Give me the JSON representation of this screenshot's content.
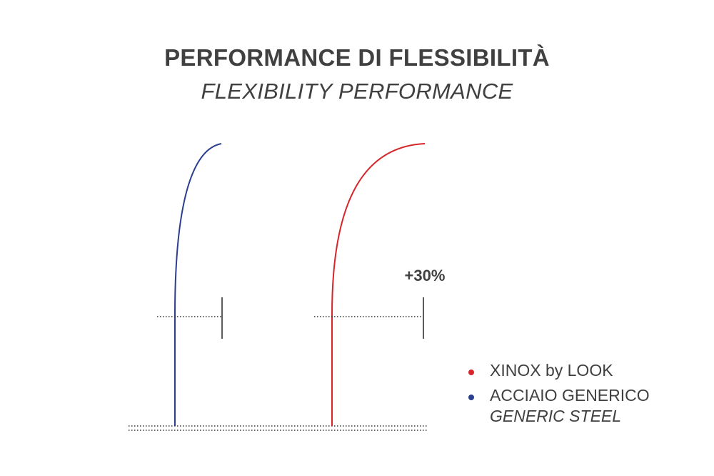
{
  "title": "PERFORMANCE DI FLESSIBILITÀ",
  "subtitle": "FLEXIBILITY PERFORMANCE",
  "annotation": "+30%",
  "colors": {
    "xinox": "#d6262b",
    "steel": "#2b3f8f",
    "text": "#404040",
    "marker": "#333333"
  },
  "legend": [
    {
      "label": "XINOX by LOOK",
      "sublabel": "",
      "color_key": "xinox"
    },
    {
      "label": "ACCIAIO GENERICO",
      "sublabel": "GENERIC STEEL",
      "color_key": "steel"
    }
  ],
  "deflection": {
    "steel": 1.0,
    "xinox": 1.3
  }
}
